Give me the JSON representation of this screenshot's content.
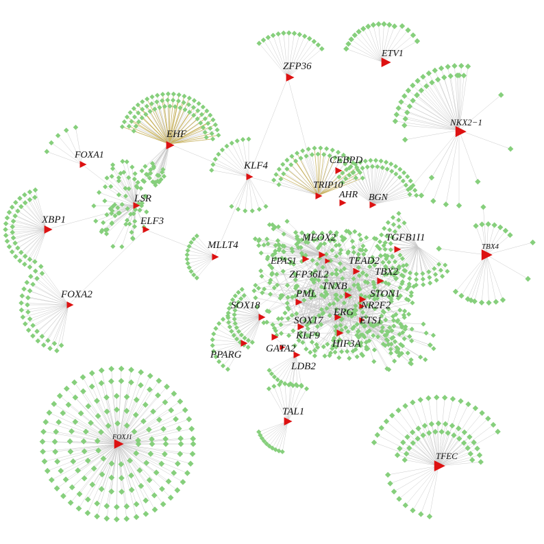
{
  "colors": {
    "target_node": "#86cf7c",
    "tf_node": "#dd1111",
    "edge": "#c9c9c9",
    "edge_highlight": "#c9b463",
    "background": "#ffffff"
  },
  "node_shapes": {
    "target_node": "diamond",
    "tf_node": "triangle"
  },
  "labels": {
    "ETV1": "ETV1",
    "ZFP36": "ZFP36",
    "NKX2_1": "NKX2−1",
    "EHF": "EHF",
    "FOXA1": "FOXA1",
    "KLF4": "KLF4",
    "CEBPD": "CEBPD",
    "TRIP10": "TRIP10",
    "AHR": "AHR",
    "BGN": "BGN",
    "LSR": "LSR",
    "XBP1": "XBP1",
    "ELF3": "ELF3",
    "TBX4": "TBX4",
    "MEOX2": "MEOX2",
    "TGFB1I1": "TGFB1I1",
    "MLLT4": "MLLT4",
    "EPAS1": "EPAS1",
    "TEAD2": "TEAD2",
    "ZFP36L2": "ZFP36L2",
    "TBX2": "TBX2",
    "TNXB": "TNXB",
    "PML": "PML",
    "STON1": "STON1",
    "FOXA2": "FOXA2",
    "NR2F2": "NR2F2",
    "SOX18": "SOX18",
    "ERG": "ERG",
    "SOX17": "SOX17",
    "ETS1": "ETS1",
    "KLF9": "KLF9",
    "HIF3A": "HIF3A",
    "PPARG": "PPARG",
    "GATA2": "GATA2",
    "LDB2": "LDB2",
    "TAL1": "TAL1",
    "FOXJ1": "FOXJ1",
    "TFEC": "TFEC"
  }
}
